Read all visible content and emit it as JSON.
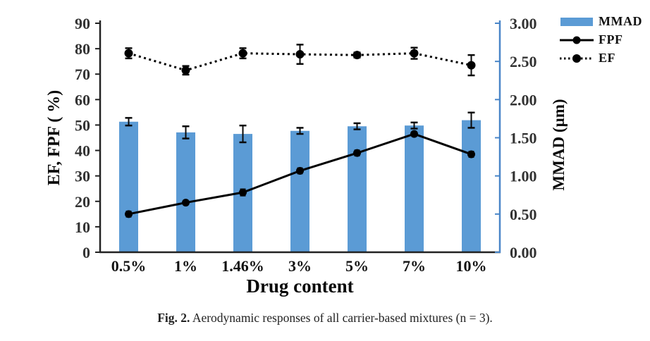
{
  "figure": {
    "caption_bold": "Fig. 2.",
    "caption_rest": " Aerodynamic responses of all carrier-based mixtures (n = 3)."
  },
  "legend": {
    "position": "top-right-outside",
    "items": [
      {
        "label": "MMAD",
        "swatch": "blue-bar"
      },
      {
        "label": "FPF",
        "swatch": "solid-line-circle-marker"
      },
      {
        "label": "EF",
        "swatch": "dotted-line-circle-marker"
      }
    ]
  },
  "chart_data": {
    "type": "bar",
    "subtype": "bar-and-line-combo",
    "grid": false,
    "categories": [
      "0.5%",
      "1%",
      "1.46%",
      "3%",
      "5%",
      "7%",
      "10%"
    ],
    "x_axis": {
      "label": "Drug content"
    },
    "left_axis": {
      "label": "EF, FPF ( %)",
      "min": 0,
      "max": 90,
      "step": 10,
      "tick_labels": [
        "0",
        "10",
        "20",
        "30",
        "40",
        "50",
        "60",
        "70",
        "80",
        "90"
      ],
      "color": "#222222"
    },
    "right_axis": {
      "label": "MMAD (µm)",
      "min": 0,
      "max": 3,
      "step": 0.5,
      "tick_labels": [
        "0.00",
        "0.50",
        "1.00",
        "1.50",
        "2.00",
        "2.50",
        "3.00"
      ],
      "color": "#4a86c8"
    },
    "series": [
      {
        "name": "MMAD",
        "type": "bar",
        "axis": "right",
        "color": "#5b9bd5",
        "values": [
          1.71,
          1.57,
          1.55,
          1.59,
          1.65,
          1.66,
          1.73
        ],
        "errors": [
          0.05,
          0.08,
          0.11,
          0.04,
          0.04,
          0.04,
          0.1
        ]
      },
      {
        "name": "FPF",
        "type": "line",
        "axis": "left",
        "color": "#000000",
        "line_style": "solid",
        "marker": "circle",
        "values": [
          15,
          19.5,
          23.5,
          32,
          39,
          46.5,
          38.5
        ],
        "errors": [
          1,
          0.8,
          1.2,
          1,
          1,
          0.8,
          1
        ]
      },
      {
        "name": "EF",
        "type": "line",
        "axis": "left",
        "color": "#000000",
        "line_style": "dotted",
        "marker": "circle",
        "values": [
          78.2,
          71.5,
          78.2,
          77.8,
          77.5,
          78.2,
          73.5
        ],
        "errors": [
          2,
          1.7,
          2,
          3.8,
          1,
          2.2,
          4
        ]
      }
    ]
  }
}
